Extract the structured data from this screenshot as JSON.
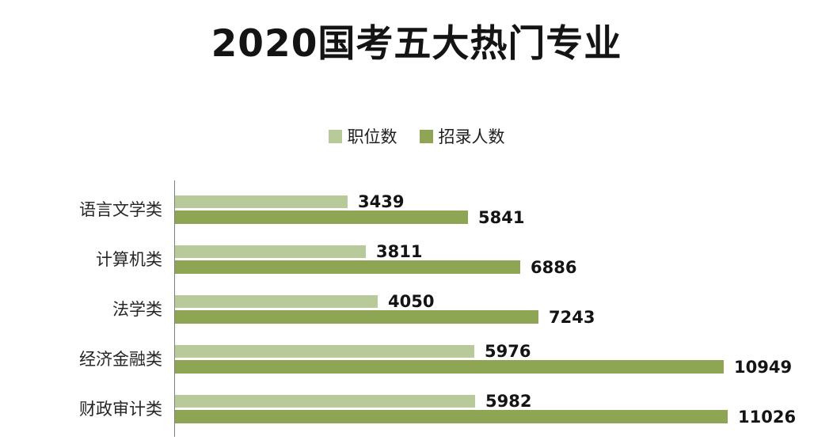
{
  "chart_data": {
    "type": "bar",
    "orientation": "horizontal",
    "title": "2020国考五大热门专业",
    "categories": [
      "语言文学类",
      "计算机类",
      "法学类",
      "经济金融类",
      "财政审计类"
    ],
    "series": [
      {
        "name": "职位数",
        "color": "#b8ca99",
        "values": [
          3439,
          3811,
          4050,
          5976,
          5982
        ]
      },
      {
        "name": "招录人数",
        "color": "#8ea554",
        "values": [
          5841,
          6886,
          7243,
          10949,
          11026
        ]
      }
    ],
    "value_labels_shown": true,
    "legend_position": "top-center",
    "grid": "off",
    "axis_color": "#7f7f7f",
    "xlim": [
      0,
      11026
    ]
  }
}
